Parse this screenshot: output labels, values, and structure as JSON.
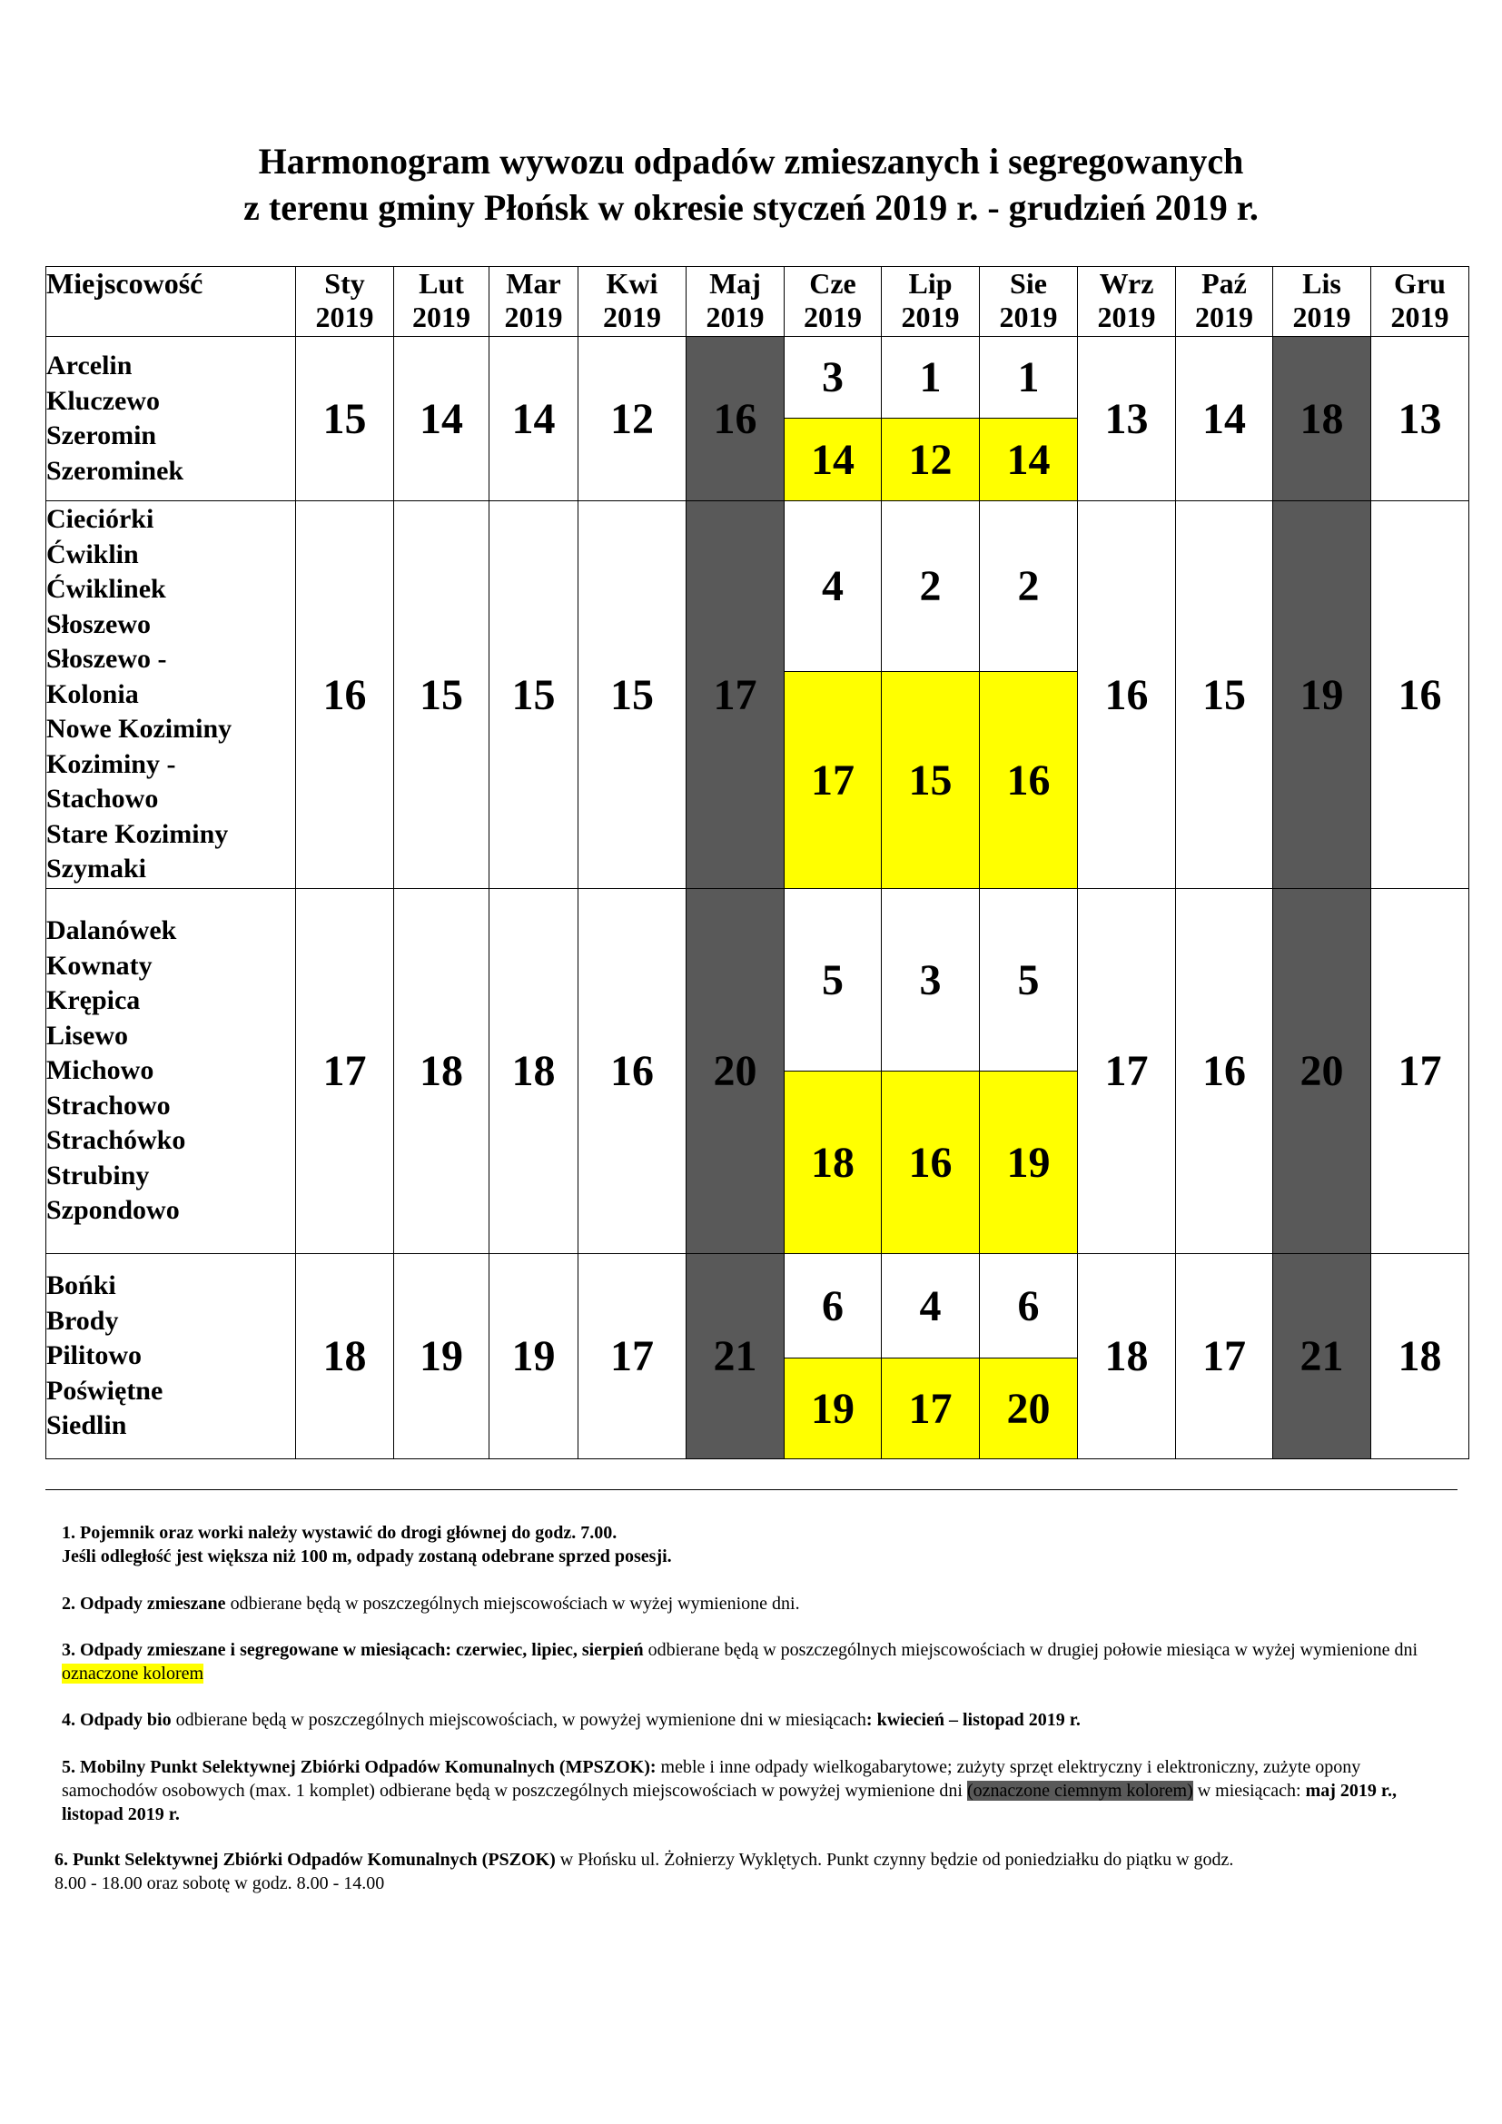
{
  "title": {
    "line1": "Harmonogram wywozu odpadów zmieszanych i segregowanych",
    "line2": "z terenu gminy Płońsk w okresie styczeń 2019 r. - grudzień 2019 r."
  },
  "table": {
    "place_header": "Miejscowość",
    "months": [
      {
        "name": "Sty",
        "year": "2019"
      },
      {
        "name": "Lut",
        "year": "2019"
      },
      {
        "name": "Mar",
        "year": "2019"
      },
      {
        "name": "Kwi",
        "year": "2019"
      },
      {
        "name": "Maj",
        "year": "2019"
      },
      {
        "name": "Cze",
        "year": "2019"
      },
      {
        "name": "Lip",
        "year": "2019"
      },
      {
        "name": "Sie",
        "year": "2019"
      },
      {
        "name": "Wrz",
        "year": "2019"
      },
      {
        "name": "Paź",
        "year": "2019"
      },
      {
        "name": "Lis",
        "year": "2019"
      },
      {
        "name": "Gru",
        "year": "2019"
      }
    ],
    "rows": [
      {
        "places": [
          "Arcelin",
          "Kluczewo",
          "Szeromin",
          "Szerominek"
        ],
        "sty": "15",
        "lut": "14",
        "mar": "14",
        "kwi": "12",
        "maj": "16",
        "cze": [
          "3",
          "14"
        ],
        "lip": [
          "1",
          "12"
        ],
        "sie": [
          "1",
          "14"
        ],
        "wrz": "13",
        "paz": "14",
        "lis": "18",
        "gru": "13"
      },
      {
        "places": [
          "Cieciórki",
          "Ćwiklin",
          "Ćwiklinek",
          "Słoszewo",
          "Słoszewo -",
          "Kolonia",
          "Nowe Koziminy",
          "Koziminy -",
          "Stachowo",
          "Stare Koziminy",
          "Szymaki"
        ],
        "sty": "16",
        "lut": "15",
        "mar": "15",
        "kwi": "15",
        "maj": "17",
        "cze": [
          "4",
          "17"
        ],
        "lip": [
          "2",
          "15"
        ],
        "sie": [
          "2",
          "16"
        ],
        "wrz": "16",
        "paz": "15",
        "lis": "19",
        "gru": "16"
      },
      {
        "places": [
          "Dalanówek",
          "Kownaty",
          "Krępica",
          "Lisewo",
          "Michowo",
          "Strachowo",
          "Strachówko",
          "Strubiny",
          "Szpondowo"
        ],
        "sty": "17",
        "lut": "18",
        "mar": "18",
        "kwi": "16",
        "maj": "20",
        "cze": [
          "5",
          "18"
        ],
        "lip": [
          "3",
          "16"
        ],
        "sie": [
          "5",
          "19"
        ],
        "wrz": "17",
        "paz": "16",
        "lis": "20",
        "gru": "17"
      },
      {
        "places": [
          "Bońki",
          "Brody",
          "Pilitowo",
          "Poświętne",
          "Siedlin"
        ],
        "sty": "18",
        "lut": "19",
        "mar": "19",
        "kwi": "17",
        "maj": "21",
        "cze": [
          "6",
          "19"
        ],
        "lip": [
          "4",
          "17"
        ],
        "sie": [
          "6",
          "20"
        ],
        "wrz": "18",
        "paz": "17",
        "lis": "21",
        "gru": "18"
      }
    ],
    "colors": {
      "dark": "#595959",
      "highlight": "#ffff00"
    }
  },
  "notes": {
    "n1_a": "1.   Pojemnik oraz worki należy wystawić do drogi głównej do godz. 7.00.",
    "n1_b": "Jeśli odległość jest większa niż 100 m, odpady zostaną odebrane sprzed posesji.",
    "n2_bold": "2.   Odpady zmieszane",
    "n2_text": " odbierane będą w poszczególnych miejscowościach w wyżej wymienione dni.",
    "n3_bold": "3. Odpady zmieszane i segregowane w miesiącach: czerwiec, lipiec, sierpień",
    "n3_text": " odbierane będą w poszczególnych miejscowościach w drugiej połowie miesiąca w wyżej wymienione dni ",
    "n3_hl": "oznaczone  kolorem",
    "n4_bold": "4.   Odpady bio",
    "n4_text": " odbierane będą w poszczególnych miejscowościach, w powyżej wymienione dni w miesiącach",
    "n4_bold2": ": kwiecień – listopad 2019 r.",
    "n5_bold": "5.   Mobilny Punkt Selektywnej Zbiórki Odpadów Komunalnych (MPSZOK):",
    "n5_text": " meble i inne odpady wielkogabarytowe; zużyty sprzęt elektryczny i elektroniczny, zużyte opony samochodów osobowych (max. 1 komplet) odbierane będą w poszczególnych miejscowościach w powyżej wymienione dni ",
    "n5_hl": "(oznaczone ciemnym kolorem)",
    "n5_text2": " w miesiącach:  ",
    "n5_bold2": "maj 2019 r., listopad 2019 r.",
    "n6_bold": "6. Punkt Selektywnej Zbiórki Odpadów Komunalnych (PSZOK)",
    "n6_text": " w Płońsku ul. Żołnierzy Wyklętych.  Punkt czynny będzie od poniedziałku do piątku w godz.",
    "n6_b": " 8.00 - 18.00 oraz sobotę w  godz. 8.00 - 14.00"
  }
}
